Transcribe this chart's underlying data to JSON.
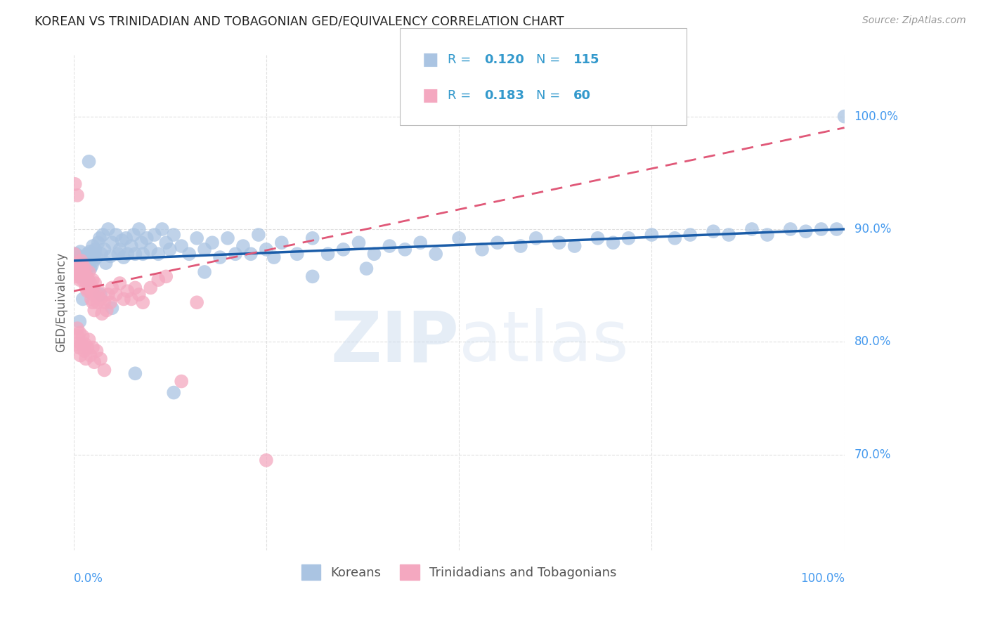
{
  "title": "KOREAN VS TRINIDADIAN AND TOBAGONIAN GED/EQUIVALENCY CORRELATION CHART",
  "source": "Source: ZipAtlas.com",
  "ylabel": "GED/Equivalency",
  "watermark": "ZIPatlas",
  "legend_blue_r": "0.120",
  "legend_blue_n": "115",
  "legend_pink_r": "0.183",
  "legend_pink_n": "60",
  "blue_color": "#aac4e2",
  "pink_color": "#f4a8c0",
  "blue_line_color": "#1a5ca8",
  "pink_line_color": "#e05878",
  "legend_text_color": "#3399cc",
  "grid_color": "#dddddd",
  "title_color": "#222222",
  "right_label_color": "#4499ee",
  "xlim": [
    0.0,
    1.0
  ],
  "ylim": [
    0.615,
    1.055
  ],
  "yticks": [
    0.7,
    0.8,
    0.9,
    1.0
  ],
  "ytick_labels": [
    "70.0%",
    "80.0%",
    "90.0%",
    "100.0%"
  ],
  "blue_scatter_x": [
    0.002,
    0.003,
    0.004,
    0.005,
    0.006,
    0.007,
    0.008,
    0.009,
    0.01,
    0.01,
    0.011,
    0.012,
    0.013,
    0.014,
    0.015,
    0.016,
    0.017,
    0.018,
    0.019,
    0.02,
    0.021,
    0.022,
    0.023,
    0.024,
    0.025,
    0.026,
    0.027,
    0.028,
    0.03,
    0.032,
    0.034,
    0.036,
    0.038,
    0.04,
    0.042,
    0.045,
    0.048,
    0.05,
    0.055,
    0.058,
    0.06,
    0.063,
    0.065,
    0.068,
    0.07,
    0.075,
    0.078,
    0.08,
    0.085,
    0.088,
    0.09,
    0.095,
    0.1,
    0.105,
    0.11,
    0.115,
    0.12,
    0.125,
    0.13,
    0.14,
    0.15,
    0.16,
    0.17,
    0.18,
    0.19,
    0.2,
    0.21,
    0.22,
    0.23,
    0.24,
    0.25,
    0.27,
    0.29,
    0.31,
    0.33,
    0.35,
    0.37,
    0.39,
    0.41,
    0.43,
    0.45,
    0.47,
    0.5,
    0.53,
    0.55,
    0.58,
    0.6,
    0.63,
    0.65,
    0.68,
    0.7,
    0.72,
    0.75,
    0.78,
    0.8,
    0.83,
    0.85,
    0.88,
    0.9,
    0.93,
    0.95,
    0.97,
    0.99,
    1.0,
    0.38,
    0.31,
    0.26,
    0.17,
    0.13,
    0.08,
    0.05,
    0.035,
    0.02,
    0.012,
    0.008
  ],
  "blue_scatter_y": [
    0.872,
    0.878,
    0.868,
    0.875,
    0.862,
    0.87,
    0.865,
    0.88,
    0.86,
    0.875,
    0.858,
    0.872,
    0.865,
    0.87,
    0.875,
    0.86,
    0.868,
    0.878,
    0.855,
    0.872,
    0.88,
    0.865,
    0.878,
    0.868,
    0.885,
    0.872,
    0.876,
    0.882,
    0.875,
    0.888,
    0.892,
    0.878,
    0.895,
    0.882,
    0.87,
    0.9,
    0.876,
    0.888,
    0.895,
    0.878,
    0.882,
    0.89,
    0.875,
    0.892,
    0.878,
    0.885,
    0.895,
    0.878,
    0.9,
    0.888,
    0.878,
    0.892,
    0.882,
    0.895,
    0.878,
    0.9,
    0.888,
    0.882,
    0.895,
    0.885,
    0.878,
    0.892,
    0.882,
    0.888,
    0.875,
    0.892,
    0.878,
    0.885,
    0.878,
    0.895,
    0.882,
    0.888,
    0.878,
    0.892,
    0.878,
    0.882,
    0.888,
    0.878,
    0.885,
    0.882,
    0.888,
    0.878,
    0.892,
    0.882,
    0.888,
    0.885,
    0.892,
    0.888,
    0.885,
    0.892,
    0.888,
    0.892,
    0.895,
    0.892,
    0.895,
    0.898,
    0.895,
    0.9,
    0.895,
    0.9,
    0.898,
    0.9,
    0.9,
    1.0,
    0.865,
    0.858,
    0.875,
    0.862,
    0.755,
    0.772,
    0.83,
    0.842,
    0.96,
    0.838,
    0.818
  ],
  "pink_scatter_x": [
    0.001,
    0.002,
    0.003,
    0.004,
    0.005,
    0.005,
    0.006,
    0.007,
    0.008,
    0.008,
    0.009,
    0.01,
    0.01,
    0.011,
    0.012,
    0.012,
    0.013,
    0.014,
    0.015,
    0.015,
    0.016,
    0.017,
    0.018,
    0.018,
    0.019,
    0.02,
    0.02,
    0.021,
    0.022,
    0.023,
    0.024,
    0.025,
    0.025,
    0.026,
    0.027,
    0.028,
    0.03,
    0.031,
    0.033,
    0.035,
    0.037,
    0.04,
    0.043,
    0.045,
    0.048,
    0.05,
    0.055,
    0.06,
    0.065,
    0.07,
    0.075,
    0.08,
    0.085,
    0.09,
    0.1,
    0.11,
    0.12,
    0.14,
    0.16,
    0.25
  ],
  "pink_scatter_y": [
    0.878,
    0.94,
    0.865,
    0.858,
    0.87,
    0.93,
    0.865,
    0.862,
    0.87,
    0.855,
    0.858,
    0.872,
    0.86,
    0.865,
    0.868,
    0.855,
    0.862,
    0.858,
    0.855,
    0.865,
    0.848,
    0.858,
    0.852,
    0.845,
    0.855,
    0.862,
    0.848,
    0.845,
    0.852,
    0.838,
    0.848,
    0.835,
    0.855,
    0.842,
    0.828,
    0.852,
    0.842,
    0.835,
    0.845,
    0.838,
    0.825,
    0.835,
    0.828,
    0.842,
    0.835,
    0.848,
    0.842,
    0.852,
    0.838,
    0.845,
    0.838,
    0.848,
    0.842,
    0.835,
    0.848,
    0.855,
    0.858,
    0.765,
    0.835,
    0.695
  ],
  "pink_extra_x": [
    0.003,
    0.005,
    0.006,
    0.007,
    0.008,
    0.009,
    0.01,
    0.012,
    0.014,
    0.015,
    0.016,
    0.018,
    0.02,
    0.022,
    0.025,
    0.027,
    0.03,
    0.035,
    0.04
  ],
  "pink_extra_y": [
    0.798,
    0.812,
    0.805,
    0.795,
    0.808,
    0.788,
    0.798,
    0.805,
    0.792,
    0.798,
    0.785,
    0.795,
    0.802,
    0.788,
    0.795,
    0.782,
    0.792,
    0.785,
    0.775
  ]
}
